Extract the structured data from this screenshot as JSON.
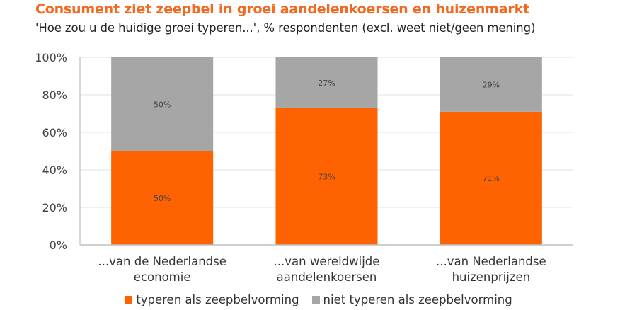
{
  "header": {
    "title": "Consument ziet zeepbel in groei aandelenkoersen en huizenmarkt",
    "subtitle": "'Hoe zou u de huidige groei typeren...', % respondenten  (excl. weet niet/geen mening)"
  },
  "colors": {
    "title": "#f26a21",
    "typeren": "#ff6200",
    "niet_typeren": "#a6a6a6",
    "grid": "#e6e6e6",
    "axis": "#bfbfbf"
  },
  "chart_data": {
    "type": "bar",
    "stacked": true,
    "title": "Consument ziet zeepbel in groei aandelenkoersen en huizenmarkt",
    "subtitle": "'Hoe zou u de huidige groei typeren...', % respondenten  (excl. weet niet/geen mening)",
    "xlabel": "",
    "ylabel": "",
    "ylim": [
      0,
      100
    ],
    "yticks": [
      "0%",
      "20%",
      "40%",
      "60%",
      "80%",
      "100%"
    ],
    "grid": true,
    "legend_position": "bottom-center",
    "categories": [
      [
        "...van de Nederlandse",
        "economie"
      ],
      [
        "...van wereldwijde",
        "aandelenkoersen"
      ],
      [
        "...van Nederlandse",
        "huizenprijzen"
      ]
    ],
    "series": [
      {
        "name": "typeren als zeepbelvorming",
        "values": [
          50,
          73,
          71
        ],
        "labels": [
          "50%",
          "73%",
          "71%"
        ]
      },
      {
        "name": "niet typeren als zeepbelvorming",
        "values": [
          50,
          27,
          29
        ],
        "labels": [
          "50%",
          "27%",
          "29%"
        ]
      }
    ]
  }
}
